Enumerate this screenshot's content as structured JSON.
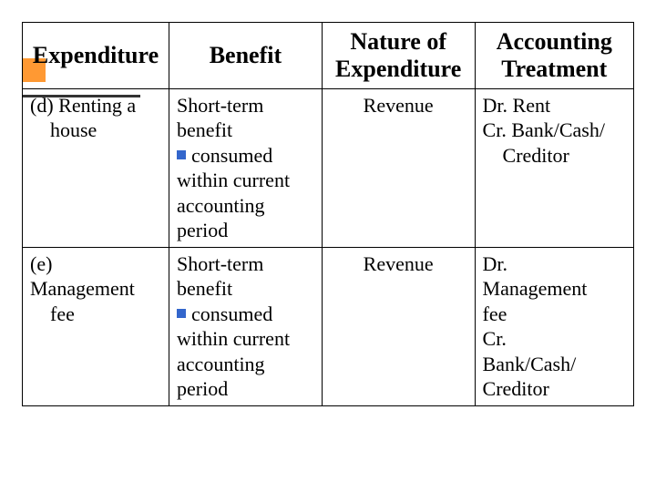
{
  "accent": {
    "square_color": "#ff9933",
    "line_color": "#333333"
  },
  "table": {
    "headers": {
      "expenditure": "Expenditure",
      "benefit": "Benefit",
      "nature": "Nature of Expenditure",
      "accounting": "Accounting Treatment"
    },
    "rows": [
      {
        "expenditure_prefix": "(d) ",
        "expenditure_line1": "Renting a",
        "expenditure_line2": "house",
        "benefit_line1": "Short-term",
        "benefit_line2": "benefit",
        "benefit_bullet": "consumed",
        "benefit_line3": "within current",
        "benefit_line4": "accounting",
        "benefit_line5": "period",
        "nature": "Revenue",
        "acc_line1": "Dr. Rent",
        "acc_line2": "Cr. Bank/Cash/",
        "acc_line3": "Creditor"
      },
      {
        "expenditure_prefix": "(e) ",
        "expenditure_line1": "Management",
        "expenditure_line2": "fee",
        "benefit_line1": "Short-term",
        "benefit_line2": "benefit",
        "benefit_bullet": "consumed",
        "benefit_line3": "within current",
        "benefit_line4": "accounting",
        "benefit_line5": "period",
        "nature": "Revenue",
        "acc_line1": "Dr.",
        "acc_line2": "Management",
        "acc_line3": "fee",
        "acc_line4": "Cr.",
        "acc_line5": "Bank/Cash/",
        "acc_line6": "Creditor"
      }
    ]
  },
  "bullet_color": "#3366cc"
}
